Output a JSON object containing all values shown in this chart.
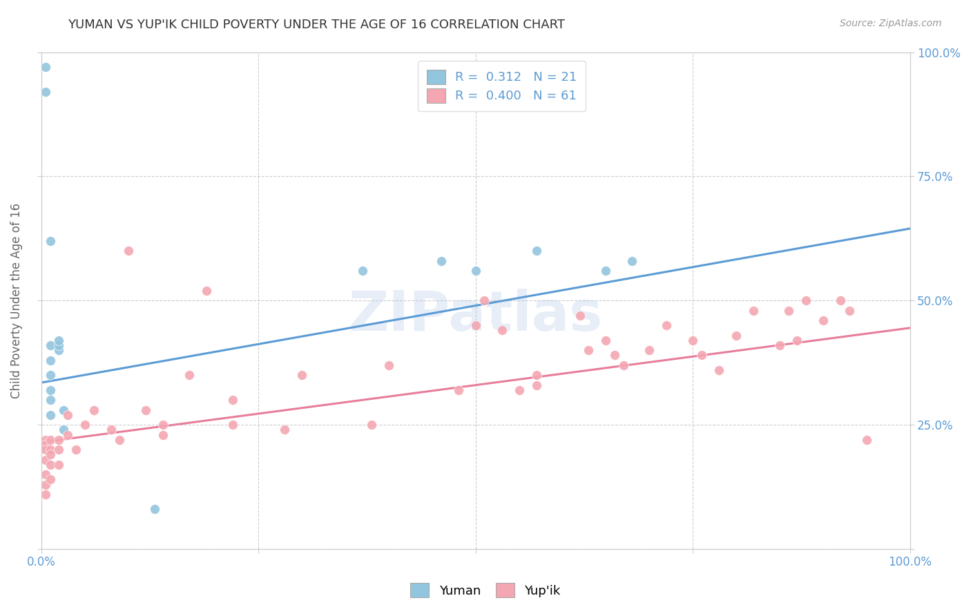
{
  "title": "YUMAN VS YUP'IK CHILD POVERTY UNDER THE AGE OF 16 CORRELATION CHART",
  "source": "Source: ZipAtlas.com",
  "ylabel": "Child Poverty Under the Age of 16",
  "watermark": "ZIPatlas",
  "yuman_color": "#92C5DE",
  "yupik_color": "#F4A6B2",
  "yuman_line_color": "#5B9BD5",
  "yupik_line_color": "#E87D9B",
  "legend_line1": "R =  0.312   N = 21",
  "legend_line2": "R =  0.400   N = 61",
  "yuman_scatter_x": [
    0.005,
    0.005,
    0.01,
    0.01,
    0.01,
    0.01,
    0.01,
    0.01,
    0.01,
    0.02,
    0.02,
    0.02,
    0.025,
    0.025,
    0.13,
    0.37,
    0.46,
    0.5,
    0.57,
    0.65,
    0.68
  ],
  "yuman_scatter_y": [
    0.97,
    0.92,
    0.41,
    0.38,
    0.35,
    0.32,
    0.3,
    0.27,
    0.62,
    0.4,
    0.41,
    0.42,
    0.28,
    0.24,
    0.08,
    0.56,
    0.58,
    0.56,
    0.6,
    0.56,
    0.58
  ],
  "yupik_scatter_x": [
    0.005,
    0.005,
    0.005,
    0.005,
    0.005,
    0.005,
    0.005,
    0.01,
    0.01,
    0.01,
    0.01,
    0.01,
    0.02,
    0.02,
    0.02,
    0.03,
    0.03,
    0.04,
    0.05,
    0.06,
    0.08,
    0.09,
    0.1,
    0.12,
    0.14,
    0.14,
    0.17,
    0.19,
    0.22,
    0.22,
    0.28,
    0.3,
    0.38,
    0.4,
    0.48,
    0.5,
    0.51,
    0.53,
    0.55,
    0.57,
    0.57,
    0.62,
    0.63,
    0.65,
    0.66,
    0.67,
    0.7,
    0.72,
    0.75,
    0.76,
    0.78,
    0.8,
    0.82,
    0.85,
    0.86,
    0.87,
    0.88,
    0.9,
    0.92,
    0.93,
    0.95
  ],
  "yupik_scatter_y": [
    0.22,
    0.21,
    0.2,
    0.18,
    0.15,
    0.13,
    0.11,
    0.22,
    0.2,
    0.19,
    0.17,
    0.14,
    0.22,
    0.2,
    0.17,
    0.27,
    0.23,
    0.2,
    0.25,
    0.28,
    0.24,
    0.22,
    0.6,
    0.28,
    0.25,
    0.23,
    0.35,
    0.52,
    0.3,
    0.25,
    0.24,
    0.35,
    0.25,
    0.37,
    0.32,
    0.45,
    0.5,
    0.44,
    0.32,
    0.33,
    0.35,
    0.47,
    0.4,
    0.42,
    0.39,
    0.37,
    0.4,
    0.45,
    0.42,
    0.39,
    0.36,
    0.43,
    0.48,
    0.41,
    0.48,
    0.42,
    0.5,
    0.46,
    0.5,
    0.48,
    0.22
  ],
  "yuman_trend_y_start": 0.335,
  "yuman_trend_y_end": 0.645,
  "yupik_trend_y_start": 0.215,
  "yupik_trend_y_end": 0.445,
  "xlim": [
    0.0,
    1.0
  ],
  "ylim": [
    0.0,
    1.0
  ],
  "background_color": "#FFFFFF",
  "grid_color": "#CCCCCC",
  "title_color": "#333333",
  "axis_label_color": "#666666",
  "tick_label_color": "#5B9BD5"
}
